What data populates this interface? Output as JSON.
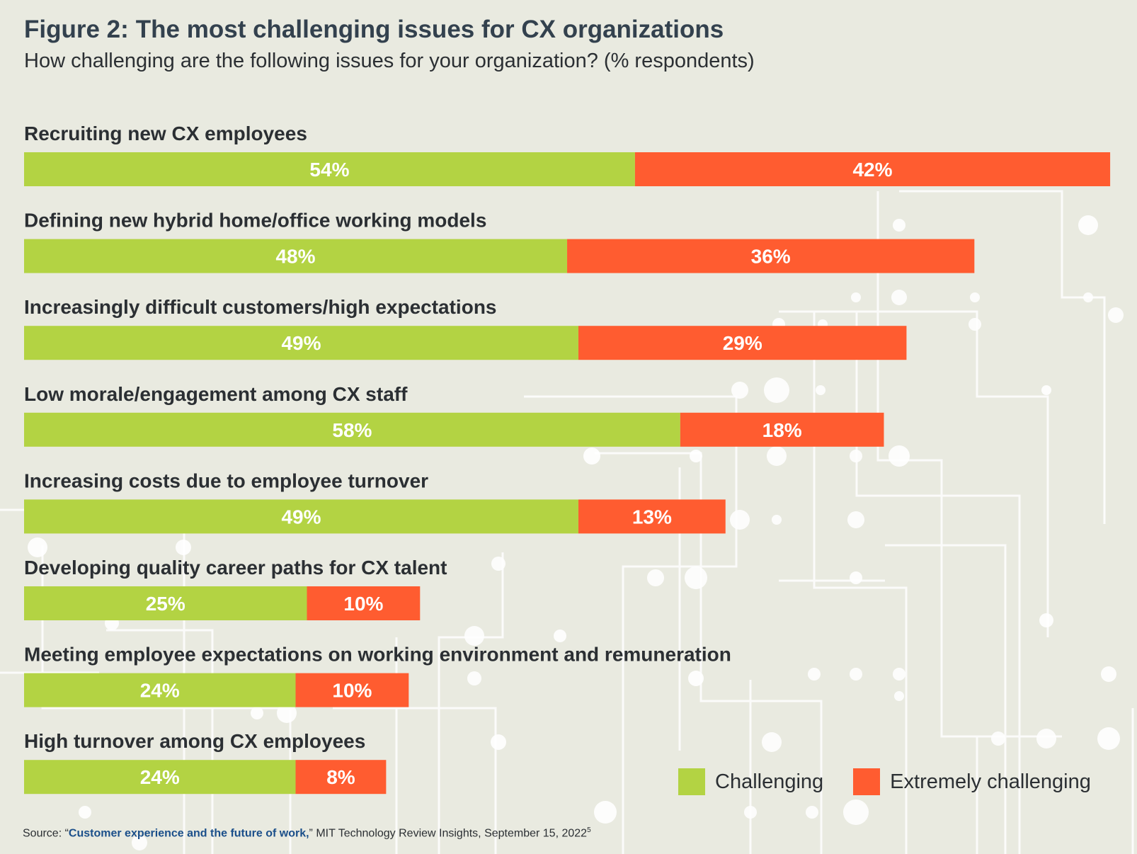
{
  "figure_label": "Figure 2:",
  "title": "The most challenging issues for CX organizations",
  "subtitle": "How challenging are the following issues for your organization? (% respondents)",
  "colors": {
    "challenging": "#b3d343",
    "extremely_challenging": "#ff5c30",
    "background": "#e9eae0",
    "label_text": "#2b2f33"
  },
  "chart_data": {
    "type": "bar",
    "orientation": "horizontal",
    "stacked": true,
    "unit": "%",
    "categories": [
      "Recruiting new CX employees",
      "Defining new hybrid home/office working models",
      "Increasingly difficult customers/high expectations",
      "Low morale/engagement among CX staff",
      "Increasing costs due to employee turnover",
      "Developing quality career paths for CX talent",
      "Meeting employee expectations on working environment and remuneration",
      "High turnover among CX employees"
    ],
    "series": [
      {
        "name": "Challenging",
        "values": [
          54,
          48,
          49,
          58,
          49,
          25,
          24,
          24
        ]
      },
      {
        "name": "Extremely challenging",
        "values": [
          42,
          36,
          29,
          18,
          13,
          10,
          10,
          8
        ]
      }
    ],
    "legend_position": "bottom-right"
  },
  "legend": {
    "challenging": "Challenging",
    "extremely_challenging": "Extremely challenging"
  },
  "source": {
    "prefix": "Source: “",
    "link_text": "Customer experience and the future of work,",
    "suffix": "” MIT Technology Review Insights, September 15, 2022",
    "footnote": "5"
  }
}
